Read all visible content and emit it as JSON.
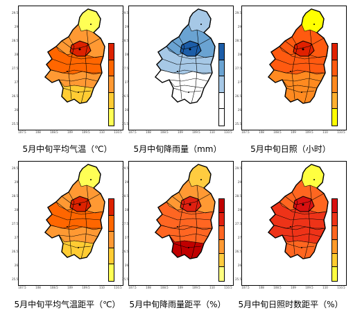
{
  "panels": [
    {
      "id": "p1",
      "caption": "5月中旬平均气温（℃）",
      "fill": "temp_mean"
    },
    {
      "id": "p2",
      "caption": "5月中旬降雨量（mm）",
      "fill": "rain"
    },
    {
      "id": "p3",
      "caption": "5月中旬日照（小时）",
      "fill": "sun"
    },
    {
      "id": "p4",
      "caption": "5月中旬平均气温距平（℃）",
      "fill": "temp_anom"
    },
    {
      "id": "p5",
      "caption": "5月中旬降雨量距平（%）",
      "fill": "rain_anom"
    },
    {
      "id": "p6",
      "caption": "5月中旬日照时数距平（%）",
      "fill": "sun_anom"
    }
  ],
  "axes": {
    "y_ticks": [
      "29.5",
      "29",
      "28.5",
      "28",
      "27.5",
      "27",
      "26.5",
      "26",
      "25.5"
    ],
    "x_ticks": [
      "107.5",
      "108",
      "108.5",
      "109",
      "109.5",
      "110",
      "110.5"
    ]
  },
  "colors": {
    "temp_mean": [
      "#ffff55",
      "#ffcc33",
      "#ff9933",
      "#ff6600",
      "#dd2200"
    ],
    "rain": [
      "#ffffff",
      "#ffffff",
      "#a6c8e6",
      "#6aa3d2",
      "#1c5da8"
    ],
    "sun": [
      "#ffff00",
      "#ffb030",
      "#ff8a20",
      "#ff5a10",
      "#e02000"
    ],
    "temp_anom": [
      "#ffff55",
      "#ffcc33",
      "#ff9933",
      "#ff6600",
      "#dd2200"
    ],
    "rain_anom": [
      "#ffff80",
      "#ffcc40",
      "#ff9933",
      "#ff6622",
      "#e02010",
      "#c00000"
    ],
    "sun_anom": [
      "#ffff40",
      "#ffcc30",
      "#ff9a28",
      "#ff6620",
      "#ee3318",
      "#d81010"
    ]
  }
}
